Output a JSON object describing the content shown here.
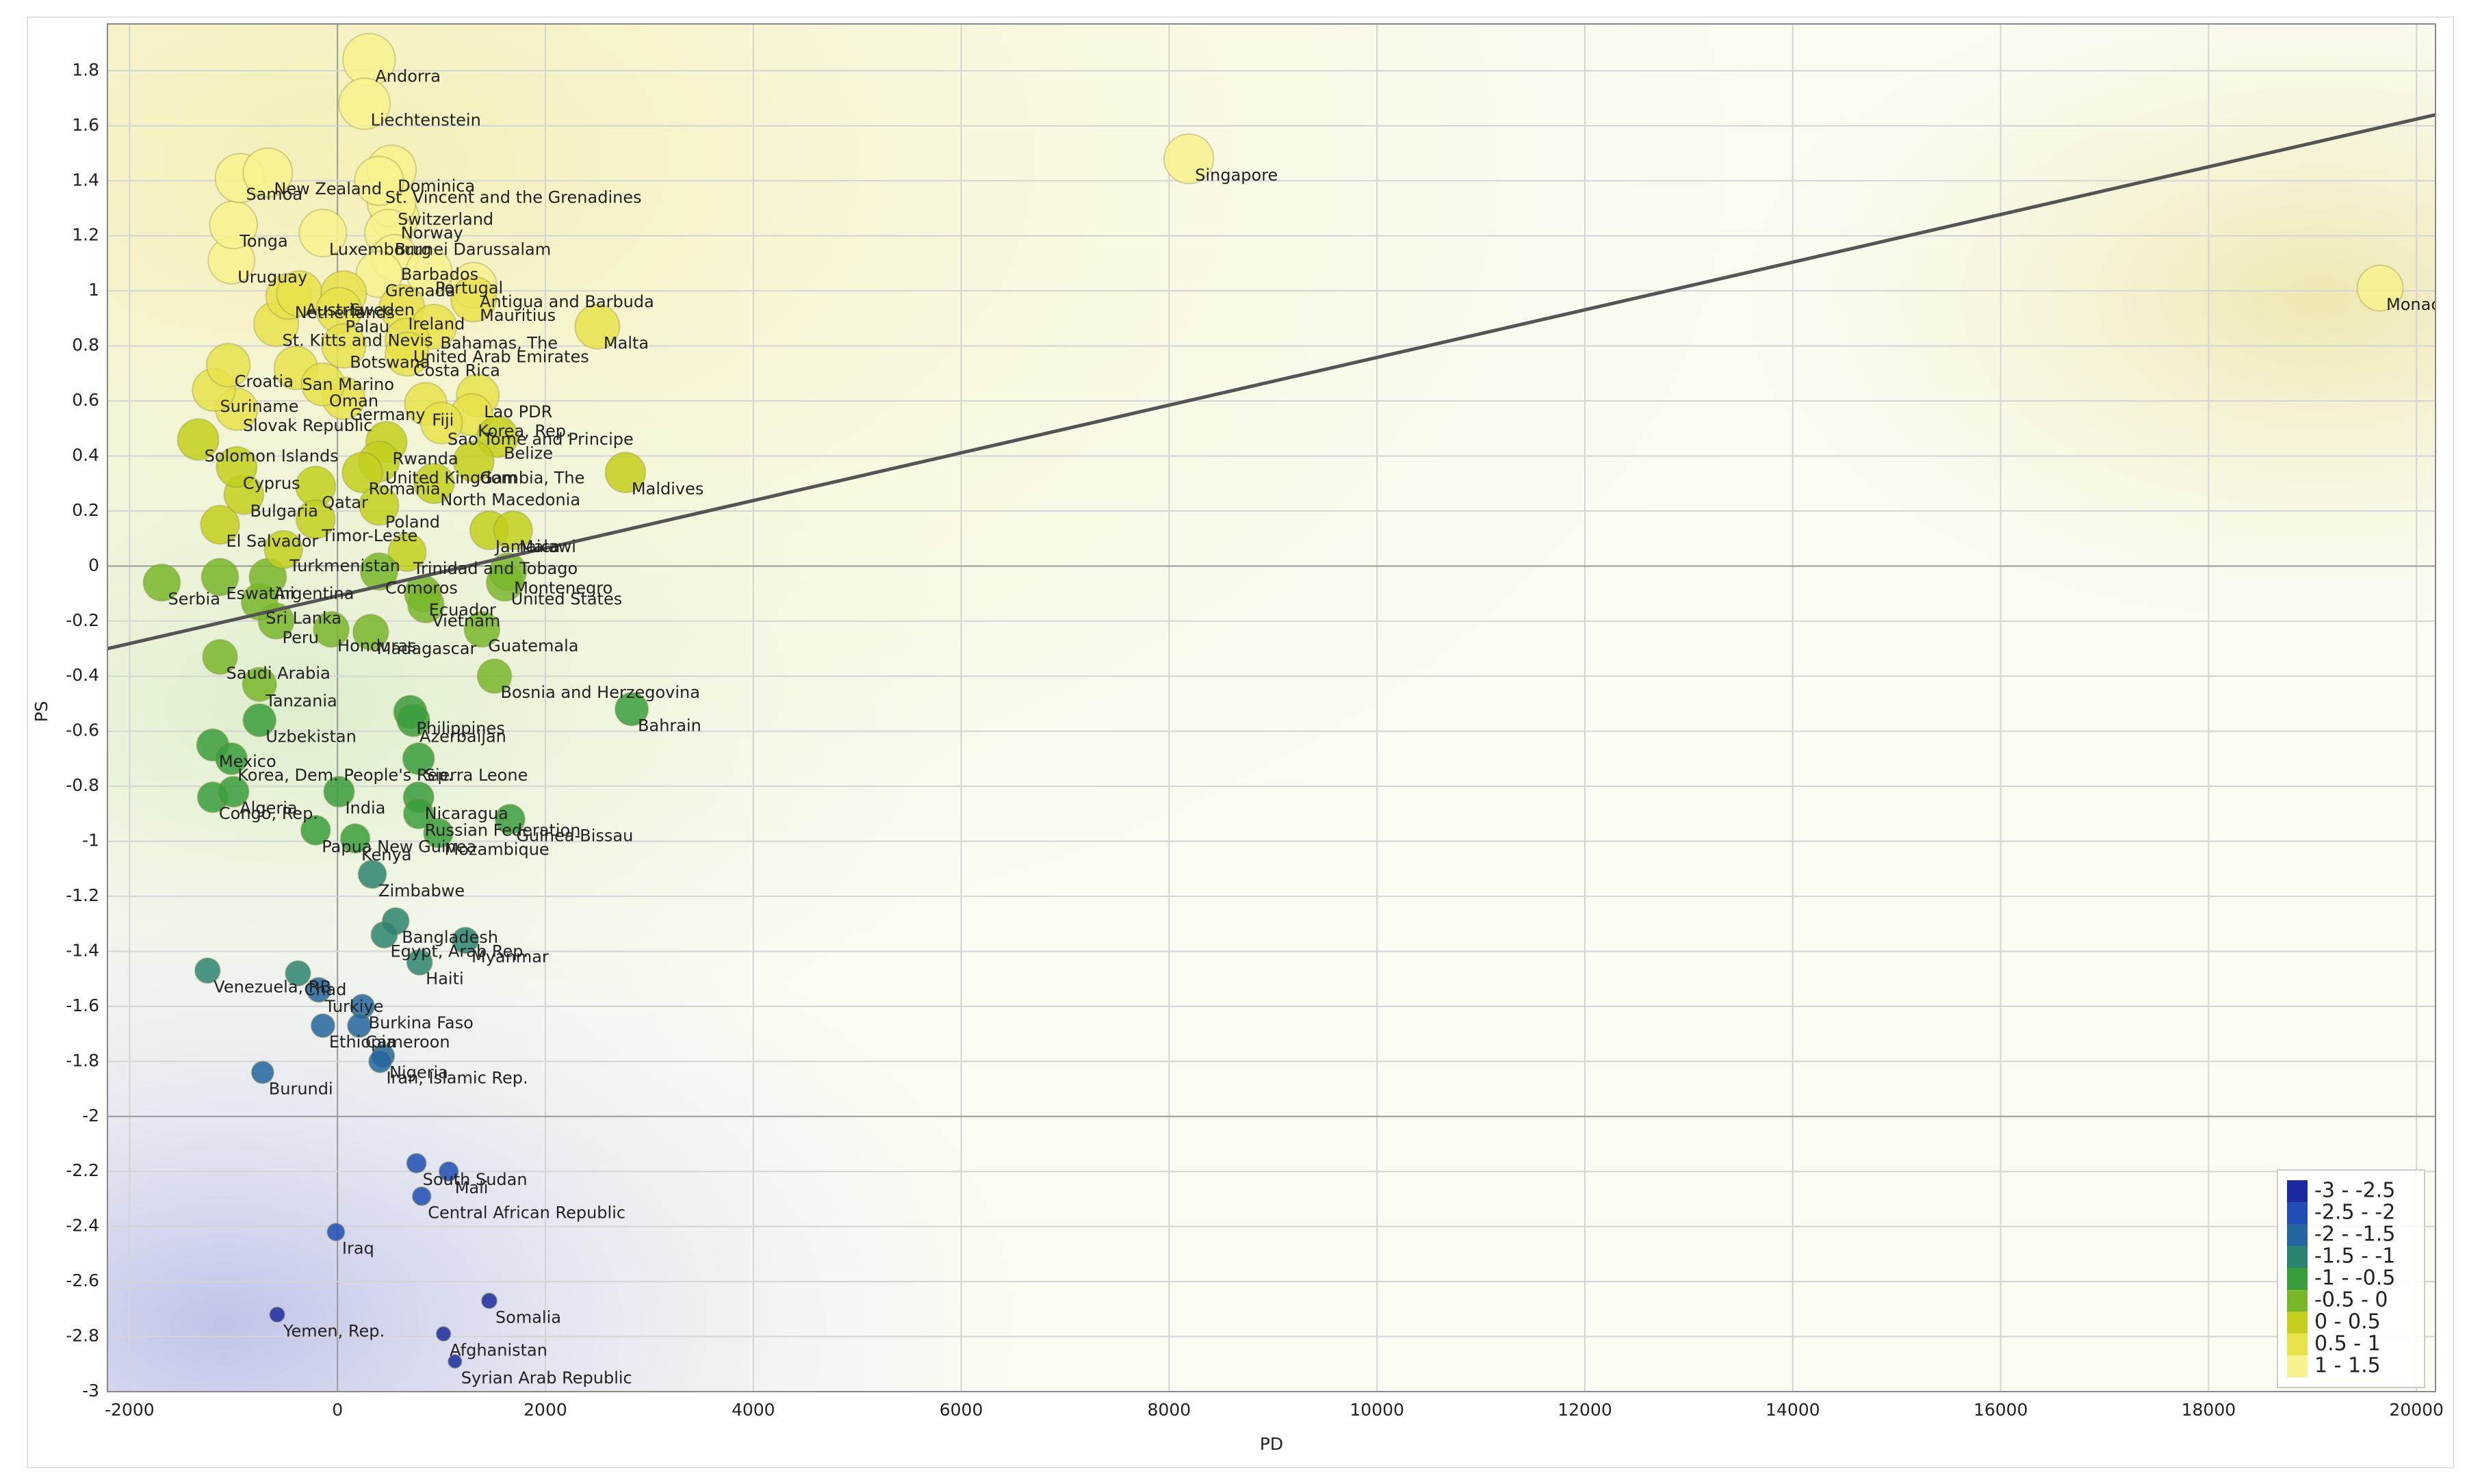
{
  "chart_data": {
    "type": "bubble",
    "x_label": "PD",
    "y_label": "PS",
    "xlim": [
      -2213,
      20183
    ],
    "ylim": [
      -3,
      1.97
    ],
    "xticks": [
      -2000,
      0,
      2000,
      4000,
      6000,
      8000,
      10000,
      12000,
      14000,
      16000,
      18000,
      20000
    ],
    "yticks": [
      -3,
      -2.8,
      -2.6,
      -2.4,
      -2.2,
      -2,
      -1.8,
      -1.6,
      -1.4,
      -1.2,
      -1,
      -0.8,
      -0.6,
      -0.4,
      -0.2,
      0,
      0.2,
      0.4,
      0.6,
      0.8,
      1,
      1.2,
      1.4,
      1.6,
      1.8
    ],
    "grid": true,
    "labels": [
      "Andorra",
      "Liechtenstein",
      "Singapore",
      "Monaco",
      "Malta",
      "Maldives",
      "Bahrain",
      "United States",
      "Montenegro",
      "Bosnia and Herzegovina",
      "Guinea-Bissau",
      "Mozambique",
      "Zimbabwe",
      "Bangladesh",
      "Myanmar",
      "Haiti",
      "Venezuela, RB",
      "Chad",
      "Turkiye",
      "Burkina Faso",
      "Ethiopia",
      "Cameroon",
      "Nigeria",
      "Iran, Islamic Rep.",
      "Burundi",
      "South Sudan",
      "Mali",
      "Central African Republic",
      "Iraq",
      "Somalia",
      "Yemen, Rep.",
      "Afghanistan",
      "Syrian Arab Republic",
      "Serbia",
      "Eswatini",
      "El Salvador",
      "Mexico",
      "Congo, Rep.",
      "Algeria",
      "Korea, Dem. People's Rep.",
      "Uzbekistan",
      "Saudi Arabia",
      "Peru",
      "Sri Lanka",
      "Argentina",
      "Turkmenistan",
      "Bulgaria",
      "Cyprus",
      "Solomon Islands",
      "Slovak Republic",
      "Suriname",
      "Croatia",
      "St. Kitts and Nevis",
      "Netherlands",
      "Austria",
      "Uruguay",
      "Tonga",
      "Samoa",
      "New Zealand",
      "Luxembourg",
      "Norway",
      "Switzerland",
      "Dominica",
      "St. Vincent and the Grenadines",
      "Brunei Darussalam",
      "Barbados",
      "Grenada",
      "Portugal",
      "Antigua and Barbuda",
      "Sweden",
      "Mauritius",
      "Ireland",
      "Palau",
      "Bahamas, The",
      "United Arab Emirates",
      "Botswana",
      "Costa Rica",
      "San Marino",
      "Lao PDR",
      "Fiji",
      "Korea, Rep.",
      "Germany",
      "Oman",
      "Sao Tome and Principe",
      "Belize",
      "Rwanda",
      "Gambia, The",
      "United Kingdom",
      "Romania",
      "North Macedonia",
      "Qatar",
      "Poland",
      "Timor-Leste",
      "Jamaica",
      "Malawi",
      "Trinidad and Tobago",
      "Comoros",
      "Ecuador",
      "Vietnam",
      "Guatemala",
      "Madagascar",
      "Honduras",
      "Tanzania",
      "Philippines",
      "Azerbaijan",
      "Sierra Leone",
      "India",
      "Nicaragua",
      "Russian Federation",
      "Kenya",
      "Papua New Guinea",
      "Egypt, Arab Rep."
    ],
    "x": [
      304,
      260,
      8190,
      19650,
      2500,
      2770,
      2830,
      1610,
      1640,
      1510,
      1660,
      970,
      335,
      560,
      1230,
      790,
      -1250,
      -380,
      -180,
      240,
      -140,
      210,
      440,
      410,
      -720,
      760,
      1070,
      810,
      -15,
      1460,
      -580,
      1020,
      1130,
      -1690,
      -1130,
      -1130,
      -1200,
      -1200,
      -1000,
      -1020,
      -750,
      -1130,
      -590,
      -750,
      -670,
      -520,
      -900,
      -970,
      -1340,
      -970,
      -1190,
      -1050,
      -590,
      -470,
      -365,
      -1020,
      -1000,
      -940,
      -670,
      -140,
      550,
      520,
      520,
      400,
      490,
      550,
      400,
      880,
      1310,
      60,
      1310,
      620,
      15,
      930,
      670,
      60,
      670,
      -400,
      1350,
      850,
      1290,
      60,
      -140,
      1000,
      1540,
      470,
      1310,
      400,
      240,
      930,
      -210,
      400,
      -210,
      1460,
      1690,
      670,
      400,
      820,
      850,
      1390,
      320,
      -60,
      -750,
      700,
      730,
      780,
      15,
      780,
      780,
      170,
      -210,
      450
    ],
    "y": [
      1.84,
      1.68,
      1.48,
      1.01,
      0.87,
      0.34,
      -0.52,
      -0.06,
      -0.02,
      -0.4,
      -0.92,
      -0.97,
      -1.12,
      -1.29,
      -1.36,
      -1.44,
      -1.47,
      -1.48,
      -1.54,
      -1.6,
      -1.67,
      -1.67,
      -1.78,
      -1.8,
      -1.84,
      -2.17,
      -2.2,
      -2.29,
      -2.42,
      -2.67,
      -2.72,
      -2.79,
      -2.89,
      -0.06,
      -0.04,
      0.15,
      -0.65,
      -0.84,
      -0.82,
      -0.7,
      -0.56,
      -0.33,
      -0.2,
      -0.13,
      -0.04,
      0.06,
      0.26,
      0.36,
      0.46,
      0.57,
      0.64,
      0.73,
      0.88,
      0.98,
      0.99,
      1.11,
      1.24,
      1.41,
      1.43,
      1.21,
      1.27,
      1.32,
      1.44,
      1.4,
      1.21,
      1.12,
      1.06,
      1.07,
      1.02,
      0.99,
      0.97,
      0.94,
      0.93,
      0.87,
      0.82,
      0.8,
      0.77,
      0.72,
      0.62,
      0.59,
      0.55,
      0.61,
      0.66,
      0.52,
      0.47,
      0.45,
      0.38,
      0.38,
      0.34,
      0.3,
      0.29,
      0.22,
      0.17,
      0.13,
      0.13,
      0.05,
      -0.02,
      -0.1,
      -0.14,
      -0.23,
      -0.24,
      -0.23,
      -0.43,
      -0.53,
      -0.56,
      -0.7,
      -0.82,
      -0.84,
      -0.9,
      -0.99,
      -0.96,
      -1.34
    ],
    "trend_line": {
      "x": [
        -2213,
        20183
      ],
      "y": [
        -0.3,
        1.64
      ],
      "color": "#555555"
    },
    "legend": {
      "position": "bottom-right",
      "items": [
        {
          "label": "-3 - -2.5",
          "lo": -3,
          "hi": -2.5,
          "color": "#1b2a9e"
        },
        {
          "label": "-2.5 - -2",
          "lo": -2.5,
          "hi": -2,
          "color": "#1f4db3"
        },
        {
          "label": "-2 - -1.5",
          "lo": -2,
          "hi": -1.5,
          "color": "#23659e"
        },
        {
          "label": "-1.5 - -1",
          "lo": -1.5,
          "hi": -1,
          "color": "#2b8470"
        },
        {
          "label": "-1 - -0.5",
          "lo": -1,
          "hi": -0.5,
          "color": "#3a9d3c"
        },
        {
          "label": "-0.5 - 0",
          "lo": -0.5,
          "hi": 0,
          "color": "#78b62a"
        },
        {
          "label": "0 - 0.5",
          "lo": 0,
          "hi": 0.5,
          "color": "#c3cf1c"
        },
        {
          "label": "0.5 - 1",
          "lo": 0.5,
          "hi": 1,
          "color": "#e8e24a"
        },
        {
          "label": "1 - 1.5",
          "lo": 1,
          "hi": 1.5,
          "color": "#f8f28e"
        }
      ]
    }
  }
}
